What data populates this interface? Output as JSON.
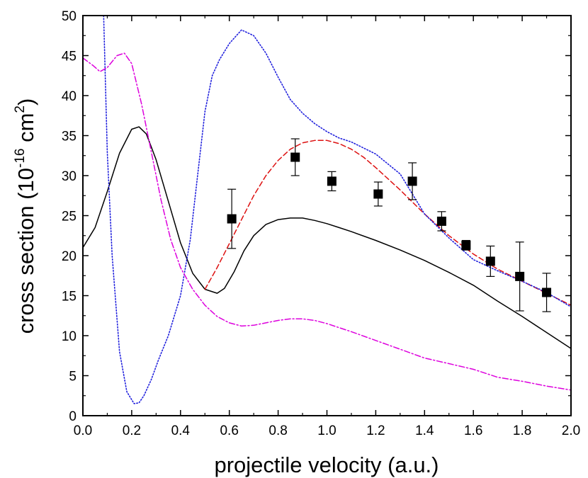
{
  "chart_data": {
    "type": "line",
    "xlabel": "projectile velocity (a.u.)",
    "ylabel": {
      "prefix": "cross section (10",
      "exp1": "-16",
      "mid": " cm",
      "exp2": "2",
      "suffix": ")"
    },
    "xlim": [
      0.0,
      2.0
    ],
    "ylim": [
      0,
      50
    ],
    "xticks": [
      "0.0",
      "0.2",
      "0.4",
      "0.6",
      "0.8",
      "1.0",
      "1.2",
      "1.4",
      "1.6",
      "1.8",
      "2.0"
    ],
    "yticks": [
      "0",
      "5",
      "10",
      "15",
      "20",
      "25",
      "30",
      "35",
      "40",
      "45",
      "50"
    ],
    "grid": false,
    "legend": "none",
    "series": [
      {
        "style": "solid",
        "color": "#000000",
        "x": [
          0.0,
          0.05,
          0.1,
          0.15,
          0.2,
          0.23,
          0.26,
          0.3,
          0.35,
          0.4,
          0.45,
          0.5,
          0.55,
          0.58,
          0.62,
          0.66,
          0.7,
          0.75,
          0.8,
          0.85,
          0.9,
          0.95,
          1.0,
          1.05,
          1.1,
          1.2,
          1.3,
          1.4,
          1.5,
          1.6,
          1.7,
          1.8,
          1.9,
          2.0
        ],
        "y": [
          21.0,
          23.5,
          28.0,
          32.8,
          35.8,
          36.1,
          35.2,
          32.0,
          26.8,
          21.6,
          17.8,
          15.8,
          15.3,
          15.9,
          18.0,
          20.6,
          22.5,
          23.9,
          24.5,
          24.7,
          24.7,
          24.4,
          24.0,
          23.5,
          23.0,
          21.9,
          20.7,
          19.4,
          17.9,
          16.3,
          14.3,
          12.4,
          10.4,
          8.4
        ]
      },
      {
        "style": "dashed",
        "color": "#dd1111",
        "x": [
          0.5,
          0.55,
          0.6,
          0.65,
          0.7,
          0.75,
          0.8,
          0.85,
          0.9,
          0.95,
          1.0,
          1.05,
          1.1,
          1.15,
          1.2,
          1.3,
          1.4,
          1.5,
          1.6,
          1.7,
          1.8,
          1.9,
          2.0
        ],
        "y": [
          15.8,
          18.5,
          21.5,
          24.5,
          27.5,
          30.0,
          31.9,
          33.3,
          34.1,
          34.4,
          34.4,
          34.0,
          33.3,
          32.3,
          31.0,
          28.2,
          25.2,
          22.5,
          20.2,
          18.3,
          16.8,
          15.3,
          13.8
        ]
      },
      {
        "style": "dotted",
        "color": "#2222dd",
        "x": [
          0.085,
          0.1,
          0.12,
          0.15,
          0.18,
          0.21,
          0.23,
          0.25,
          0.28,
          0.31,
          0.35,
          0.4,
          0.44,
          0.47,
          0.5,
          0.53,
          0.56,
          0.6,
          0.65,
          0.7,
          0.75,
          0.8,
          0.85,
          0.9,
          0.95,
          1.0,
          1.05,
          1.1,
          1.2,
          1.3,
          1.4,
          1.5,
          1.6,
          1.7,
          1.8,
          1.9,
          2.0
        ],
        "y": [
          50.0,
          33.0,
          20.0,
          8.0,
          3.0,
          1.5,
          1.6,
          2.5,
          4.5,
          7.0,
          10.0,
          15.0,
          22.0,
          30.0,
          38.0,
          42.5,
          44.5,
          46.5,
          48.2,
          47.5,
          45.3,
          42.3,
          39.5,
          37.8,
          36.5,
          35.5,
          34.7,
          34.2,
          32.7,
          30.2,
          25.2,
          22.2,
          19.5,
          18.1,
          16.8,
          15.4,
          13.6
        ]
      },
      {
        "style": "dash-dot",
        "color": "#dd00dd",
        "x": [
          0.0,
          0.04,
          0.07,
          0.1,
          0.14,
          0.17,
          0.2,
          0.24,
          0.28,
          0.32,
          0.36,
          0.4,
          0.45,
          0.5,
          0.55,
          0.6,
          0.65,
          0.7,
          0.75,
          0.8,
          0.85,
          0.9,
          0.95,
          1.0,
          1.05,
          1.1,
          1.2,
          1.3,
          1.4,
          1.5,
          1.6,
          1.7,
          1.8,
          1.9,
          2.0
        ],
        "y": [
          44.7,
          43.8,
          43.0,
          43.5,
          45.0,
          45.3,
          44.0,
          39.0,
          33.0,
          27.0,
          22.0,
          18.5,
          15.8,
          13.8,
          12.4,
          11.6,
          11.2,
          11.3,
          11.6,
          11.9,
          12.1,
          12.1,
          11.9,
          11.5,
          11.0,
          10.5,
          9.4,
          8.3,
          7.2,
          6.5,
          5.8,
          4.8,
          4.3,
          3.7,
          3.2
        ]
      }
    ],
    "points": {
      "marker": "square",
      "color": "#000000",
      "x": [
        0.61,
        0.87,
        1.02,
        1.21,
        1.35,
        1.47,
        1.57,
        1.67,
        1.79,
        1.9
      ],
      "y": [
        24.6,
        32.3,
        29.3,
        27.7,
        29.3,
        24.3,
        21.3,
        19.3,
        17.4,
        15.4
      ],
      "err": [
        3.7,
        2.3,
        1.2,
        1.5,
        2.3,
        1.2,
        0.6,
        1.9,
        4.3,
        2.4
      ]
    }
  }
}
